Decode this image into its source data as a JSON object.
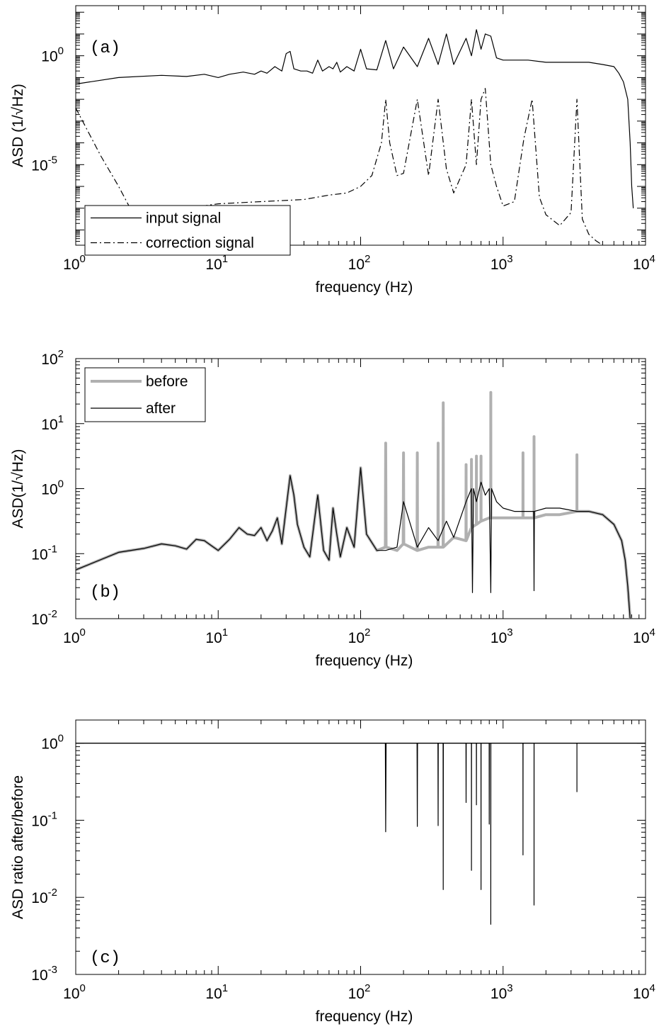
{
  "chart_data": [
    {
      "type": "line",
      "panel_label": "(a)",
      "xlabel": "frequency (Hz)",
      "ylabel": "ASD (1/√Hz)",
      "x_scale": "log",
      "y_scale": "log",
      "xlim": [
        1,
        10000
      ],
      "ylim_exp": [
        -8.7,
        2.3
      ],
      "x_ticks": [
        {
          "base": "10",
          "exp": "0"
        },
        {
          "base": "10",
          "exp": "1"
        },
        {
          "base": "10",
          "exp": "2"
        },
        {
          "base": "10",
          "exp": "3"
        },
        {
          "base": "10",
          "exp": "4"
        }
      ],
      "y_ticks": [
        {
          "base": "10",
          "exp": "0",
          "value": 0
        },
        {
          "base": "10",
          "exp": "-5",
          "value": -5
        }
      ],
      "legend": {
        "position": "bottom-left"
      },
      "series": [
        {
          "name": "input signal",
          "style": "solid",
          "color": "#000000",
          "x": [
            1,
            2,
            4,
            6,
            8,
            10,
            12,
            15,
            18,
            20,
            22,
            25,
            28,
            30,
            32,
            34,
            38,
            42,
            46,
            50,
            54,
            60,
            64,
            68,
            72,
            80,
            90,
            100,
            110,
            130,
            150,
            170,
            200,
            250,
            300,
            350,
            400,
            450,
            550,
            600,
            650,
            700,
            750,
            820,
            900,
            1000,
            1200,
            1500,
            2000,
            2500,
            3000,
            3500,
            4000,
            5000,
            6000,
            6500,
            7000,
            7500,
            7800,
            8000,
            8200
          ],
          "y_exp": [
            -1.3,
            -1.0,
            -0.9,
            -0.95,
            -0.85,
            -1.0,
            -0.85,
            -0.75,
            -0.85,
            -0.7,
            -0.8,
            -0.5,
            -0.7,
            0.1,
            0.2,
            -0.6,
            -0.7,
            -0.7,
            -0.8,
            -0.2,
            -0.7,
            -0.5,
            -0.6,
            -0.3,
            -0.75,
            -0.5,
            -0.7,
            0.3,
            -0.6,
            -0.65,
            0.7,
            -0.6,
            0.4,
            -0.5,
            0.8,
            -0.4,
            1.0,
            -0.4,
            0.8,
            0.0,
            1.2,
            0.3,
            1.0,
            0.9,
            -0.1,
            -0.2,
            -0.2,
            -0.2,
            -0.3,
            -0.3,
            -0.3,
            -0.3,
            -0.3,
            -0.4,
            -0.5,
            -0.8,
            -1.2,
            -2.0,
            -4.0,
            -6.0,
            -7.0
          ]
        },
        {
          "name": "correction signal",
          "style": "dashdot",
          "color": "#000000",
          "x": [
            1,
            1.5,
            2,
            2.5,
            3,
            4,
            6,
            10,
            20,
            40,
            60,
            80,
            100,
            120,
            140,
            150,
            160,
            180,
            200,
            250,
            300,
            350,
            400,
            450,
            550,
            600,
            650,
            700,
            750,
            820,
            900,
            1000,
            1200,
            1400,
            1600,
            1800,
            2000,
            2500,
            3000,
            3300,
            3600,
            4000,
            4500,
            5000
          ],
          "y_exp": [
            -2.4,
            -4.6,
            -6.0,
            -7.2,
            -7.2,
            -7.0,
            -7.0,
            -6.8,
            -6.7,
            -6.6,
            -6.4,
            -6.3,
            -6.0,
            -5.5,
            -4.0,
            -2.0,
            -4.0,
            -5.5,
            -5.4,
            -2.0,
            -5.5,
            -2.0,
            -5.2,
            -6.3,
            -5.0,
            -2.0,
            -5.0,
            -2.0,
            -1.5,
            -5.0,
            -6.0,
            -6.9,
            -6.7,
            -3.8,
            -2.0,
            -6.5,
            -7.3,
            -7.8,
            -7.2,
            -2.0,
            -7.5,
            -8.2,
            -8.5,
            -8.7
          ]
        }
      ]
    },
    {
      "type": "line",
      "panel_label": "(b)",
      "xlabel": "frequency (Hz)",
      "ylabel": "ASD(1/√Hz)",
      "x_scale": "log",
      "y_scale": "log",
      "xlim": [
        1,
        10000
      ],
      "ylim_exp": [
        -2,
        2
      ],
      "x_ticks": [
        {
          "base": "10",
          "exp": "0"
        },
        {
          "base": "10",
          "exp": "1"
        },
        {
          "base": "10",
          "exp": "2"
        },
        {
          "base": "10",
          "exp": "3"
        },
        {
          "base": "10",
          "exp": "4"
        }
      ],
      "y_ticks": [
        {
          "base": "10",
          "exp": "2",
          "value": 2
        },
        {
          "base": "10",
          "exp": "1",
          "value": 1
        },
        {
          "base": "10",
          "exp": "0",
          "value": 0
        },
        {
          "base": "10",
          "exp": "-1",
          "value": -1
        },
        {
          "base": "10",
          "exp": "-2",
          "value": -2
        }
      ],
      "legend": {
        "position": "top-left"
      },
      "series": [
        {
          "name": "before",
          "style": "solid",
          "color": "#b0b0b0",
          "x": [
            1,
            2,
            3,
            4,
            5,
            6,
            7,
            8,
            9,
            10,
            12,
            14,
            16,
            18,
            20,
            22,
            24,
            26,
            28,
            30,
            32,
            34,
            36,
            40,
            44,
            48,
            50,
            55,
            60,
            64,
            68,
            72,
            80,
            90,
            100,
            110,
            130,
            149,
            150,
            151,
            180,
            199,
            200,
            201,
            249,
            250,
            251,
            300,
            349,
            350,
            351,
            379,
            380,
            381,
            450,
            549,
            550,
            551,
            599,
            600,
            601,
            649,
            650,
            651,
            699,
            700,
            701,
            800,
            819,
            820,
            821,
            1000,
            1200,
            1379,
            1380,
            1381,
            1649,
            1650,
            1651,
            2000,
            2500,
            3299,
            3300,
            3301,
            4000,
            5000,
            6000,
            6800,
            7200,
            7500,
            7800
          ],
          "y_exp": [
            -1.25,
            -0.98,
            -0.92,
            -0.85,
            -0.88,
            -0.93,
            -0.78,
            -0.8,
            -0.88,
            -0.95,
            -0.78,
            -0.6,
            -0.7,
            -0.72,
            -0.6,
            -0.8,
            -0.65,
            -0.45,
            -0.85,
            -0.3,
            0.2,
            -0.1,
            -0.55,
            -0.9,
            -1.05,
            -0.4,
            -0.1,
            -0.95,
            -1.1,
            -0.3,
            -0.7,
            -1.05,
            -0.6,
            -0.9,
            0.32,
            -0.7,
            -0.95,
            -0.9,
            0.7,
            -0.9,
            -0.95,
            -0.85,
            0.55,
            -0.85,
            -0.95,
            0.55,
            -0.95,
            -0.9,
            -0.9,
            0.7,
            -0.9,
            -0.9,
            1.32,
            -0.9,
            -0.75,
            -0.8,
            0.37,
            -0.8,
            -0.6,
            0.45,
            -0.6,
            -0.55,
            0.5,
            -0.55,
            -0.5,
            0.5,
            -0.5,
            -0.45,
            -0.45,
            1.48,
            -0.45,
            -0.45,
            -0.45,
            -0.45,
            0.55,
            -0.45,
            -0.45,
            0.8,
            -0.45,
            -0.4,
            -0.4,
            -0.35,
            0.52,
            -0.35,
            -0.35,
            -0.4,
            -0.55,
            -0.8,
            -1.1,
            -1.5,
            -2.0
          ]
        },
        {
          "name": "after",
          "style": "solid",
          "color": "#000000",
          "x": [
            1,
            2,
            3,
            4,
            5,
            6,
            7,
            8,
            9,
            10,
            12,
            14,
            16,
            18,
            20,
            22,
            24,
            26,
            28,
            30,
            32,
            34,
            36,
            40,
            44,
            48,
            50,
            55,
            60,
            64,
            68,
            72,
            80,
            90,
            100,
            110,
            130,
            150,
            180,
            200,
            250,
            300,
            350,
            400,
            450,
            550,
            600,
            610,
            620,
            650,
            700,
            750,
            800,
            820,
            830,
            900,
            1000,
            1200,
            1500,
            1640,
            1650,
            1660,
            2000,
            2500,
            3300,
            4000,
            5000,
            6000,
            6800,
            7200,
            7500,
            7800
          ],
          "y_exp": [
            -1.25,
            -0.98,
            -0.92,
            -0.85,
            -0.88,
            -0.93,
            -0.78,
            -0.8,
            -0.88,
            -0.95,
            -0.78,
            -0.6,
            -0.7,
            -0.72,
            -0.6,
            -0.8,
            -0.65,
            -0.45,
            -0.85,
            -0.3,
            0.2,
            -0.1,
            -0.55,
            -0.9,
            -1.05,
            -0.4,
            -0.1,
            -0.95,
            -1.1,
            -0.3,
            -0.7,
            -1.05,
            -0.6,
            -0.9,
            0.32,
            -0.7,
            -0.95,
            -0.95,
            -0.9,
            -0.2,
            -0.9,
            -0.6,
            -0.8,
            -0.5,
            -0.75,
            -0.2,
            0.0,
            -1.6,
            0.0,
            -0.2,
            0.1,
            -0.1,
            0.0,
            -1.6,
            0.0,
            -0.2,
            -0.3,
            -0.35,
            -0.35,
            -0.35,
            -1.57,
            -0.35,
            -0.3,
            -0.3,
            -0.35,
            -0.35,
            -0.4,
            -0.55,
            -0.8,
            -1.1,
            -1.5,
            -2.0
          ]
        }
      ]
    },
    {
      "type": "line",
      "panel_label": "(c)",
      "xlabel": "frequency (Hz)",
      "ylabel": "ASD ratio after/before",
      "x_scale": "log",
      "y_scale": "log",
      "xlim": [
        1,
        10000
      ],
      "ylim_exp": [
        -3,
        0.3
      ],
      "x_ticks": [
        {
          "base": "10",
          "exp": "0"
        },
        {
          "base": "10",
          "exp": "1"
        },
        {
          "base": "10",
          "exp": "2"
        },
        {
          "base": "10",
          "exp": "3"
        },
        {
          "base": "10",
          "exp": "4"
        }
      ],
      "y_ticks": [
        {
          "base": "10",
          "exp": "0",
          "value": 0
        },
        {
          "base": "10",
          "exp": "-1",
          "value": -1
        },
        {
          "base": "10",
          "exp": "-2",
          "value": -2
        },
        {
          "base": "10",
          "exp": "-3",
          "value": -3
        }
      ],
      "baseline_exp": 0,
      "series": [
        {
          "name": "",
          "style": "solid",
          "color": "#000000",
          "x": [
            1,
            149,
            150,
            151,
            249,
            250,
            251,
            349,
            350,
            351,
            379,
            380,
            381,
            549,
            550,
            551,
            599,
            600,
            601,
            649,
            650,
            651,
            699,
            700,
            701,
            799,
            800,
            801,
            819,
            820,
            821,
            1379,
            1380,
            1381,
            1649,
            1650,
            1651,
            3299,
            3300,
            3301,
            10000
          ],
          "y_exp": [
            0,
            0,
            -1.15,
            0,
            0,
            -1.08,
            0,
            0,
            -1.07,
            0,
            0,
            -1.9,
            0,
            0,
            -0.77,
            0,
            0,
            -1.65,
            0,
            0,
            -0.8,
            0,
            0,
            -1.9,
            0,
            0,
            -1.05,
            0,
            0,
            -2.35,
            0,
            0,
            -1.45,
            0,
            0,
            -2.1,
            0,
            0,
            -0.63,
            0,
            0
          ]
        }
      ]
    }
  ]
}
